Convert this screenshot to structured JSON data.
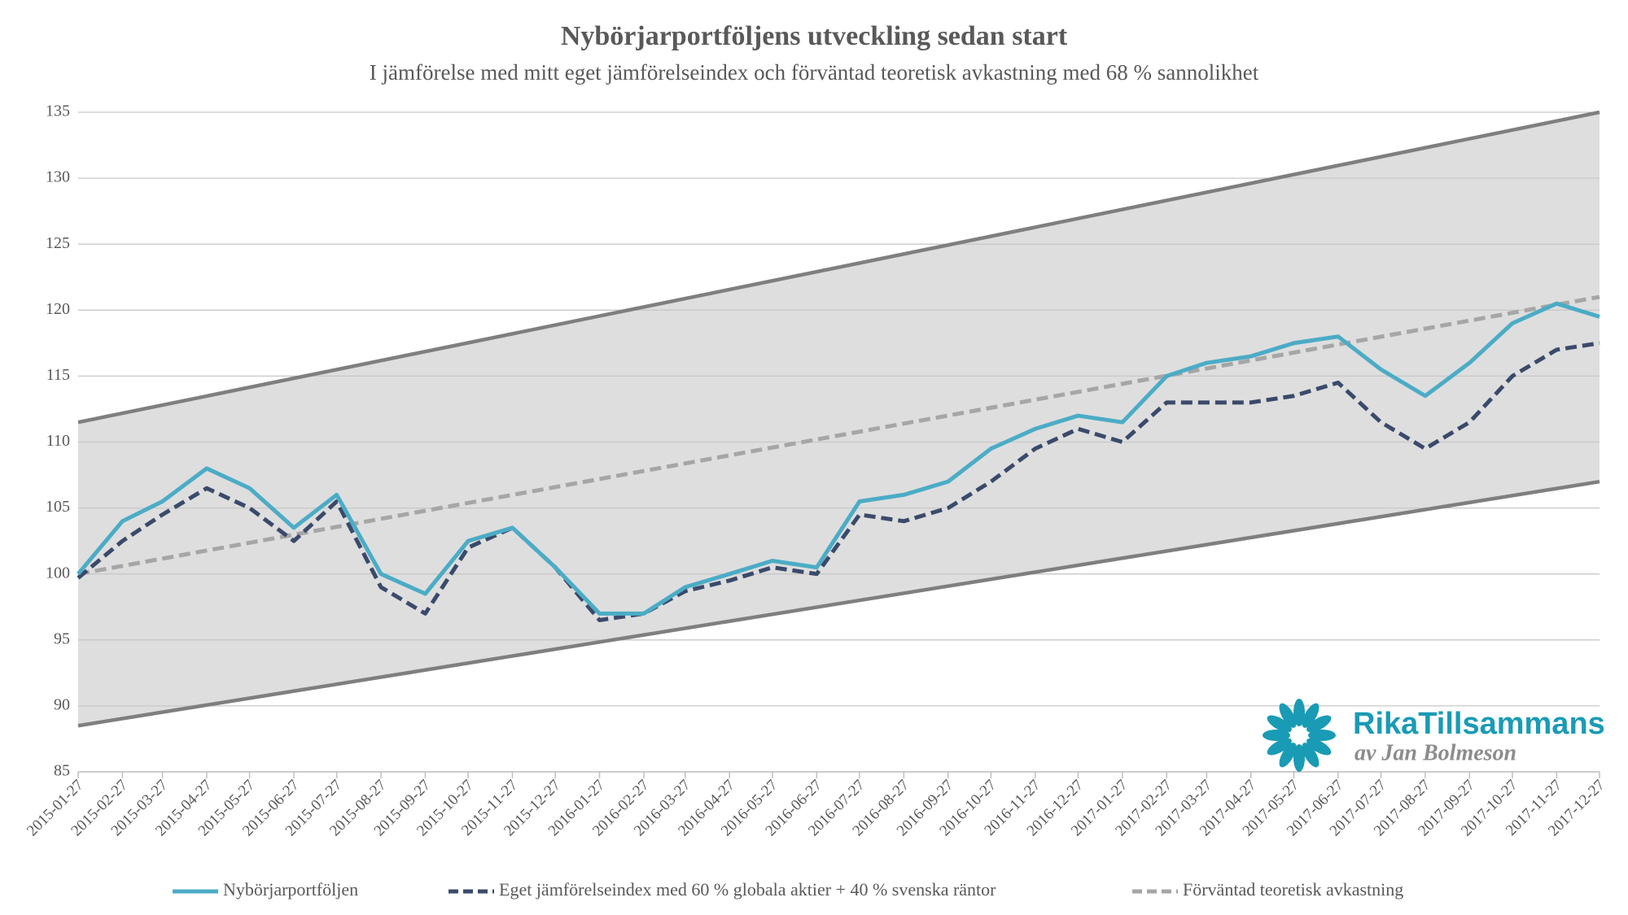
{
  "chart_data": {
    "type": "line",
    "title": "Nybörjarportföljens utveckling sedan start",
    "subtitle": "I jämförelse med mitt eget jämförelseindex och förväntad teoretisk avkastning med 68 % sannolikhet",
    "x": [
      "2015-01-27",
      "2015-02-27",
      "2015-03-27",
      "2015-04-27",
      "2015-05-27",
      "2015-06-27",
      "2015-07-27",
      "2015-08-27",
      "2015-09-27",
      "2015-10-27",
      "2015-11-27",
      "2015-12-27",
      "2016-01-27",
      "2016-02-27",
      "2016-03-27",
      "2016-04-27",
      "2016-05-27",
      "2016-06-27",
      "2016-07-27",
      "2016-08-27",
      "2016-09-27",
      "2016-10-27",
      "2016-11-27",
      "2016-12-27",
      "2017-01-27",
      "2017-02-27",
      "2017-03-27",
      "2017-04-27",
      "2017-05-27",
      "2017-06-27",
      "2017-07-27",
      "2017-08-27",
      "2017-09-27",
      "2017-10-27",
      "2017-11-27",
      "2017-12-27"
    ],
    "series": [
      {
        "name": "Nybörjarportföljen",
        "color": "#4bacc6",
        "dash": false,
        "values": [
          100,
          104,
          105.5,
          108,
          106.5,
          103.5,
          106,
          100,
          98.5,
          102.5,
          103.5,
          100.5,
          97,
          97,
          99,
          100,
          101,
          100.5,
          105.5,
          106,
          107,
          109.5,
          111,
          112,
          111.5,
          115,
          116,
          116.5,
          117.5,
          118,
          115.5,
          113.5,
          116,
          119,
          120.5,
          119.5
        ]
      },
      {
        "name": "Eget jämförelseindex med 60 % globala aktier + 40 % svenska räntor",
        "color": "#3a4a6b",
        "dash": true,
        "values": [
          99.7,
          102.5,
          104.5,
          106.5,
          105,
          102.5,
          105.5,
          99,
          97,
          102,
          103.5,
          100.5,
          96.5,
          97,
          98.7,
          99.5,
          100.5,
          100,
          104.5,
          104,
          105,
          107,
          109.5,
          111,
          110,
          113,
          113,
          113,
          113.5,
          114.5,
          111.5,
          109.5,
          111.5,
          115,
          117,
          117.5
        ]
      },
      {
        "name": "Förväntad teoretisk avkastning",
        "color": "#a6a6a6",
        "dash": true,
        "x": [
          "2015-01-27",
          "2017-12-27"
        ],
        "values": [
          100,
          121
        ]
      }
    ],
    "band": {
      "color": "#7f7f7f",
      "fill": "#dedede",
      "x": [
        "2015-01-27",
        "2017-12-27"
      ],
      "upper": [
        111.5,
        135
      ],
      "lower": [
        88.5,
        107
      ]
    },
    "xlim": [
      "2015-01-27",
      "2017-12-27"
    ],
    "xticks": [
      "2015-01-27",
      "2015-02-27",
      "2015-03-27",
      "2015-04-27",
      "2015-05-27",
      "2015-06-27",
      "2015-07-27",
      "2015-08-27",
      "2015-09-27",
      "2015-10-27",
      "2015-11-27",
      "2015-12-27",
      "2016-01-27",
      "2016-02-27",
      "2016-03-27",
      "2016-04-27",
      "2016-05-27",
      "2016-06-27",
      "2016-07-27",
      "2016-08-27",
      "2016-09-27",
      "2016-10-27",
      "2016-11-27",
      "2016-12-27",
      "2017-01-27",
      "2017-02-27",
      "2017-03-27",
      "2017-04-27",
      "2017-05-27",
      "2017-06-27",
      "2017-07-27",
      "2017-08-27",
      "2017-09-27",
      "2017-10-27",
      "2017-11-27",
      "2017-12-27"
    ],
    "ylim": [
      85,
      135
    ],
    "yticks": [
      85,
      90,
      95,
      100,
      105,
      110,
      115,
      120,
      125,
      130,
      135
    ],
    "grid": true,
    "legend": "bottom",
    "logo": {
      "name": "RikaTillsammans",
      "byline": "av Jan Bolmeson"
    }
  }
}
